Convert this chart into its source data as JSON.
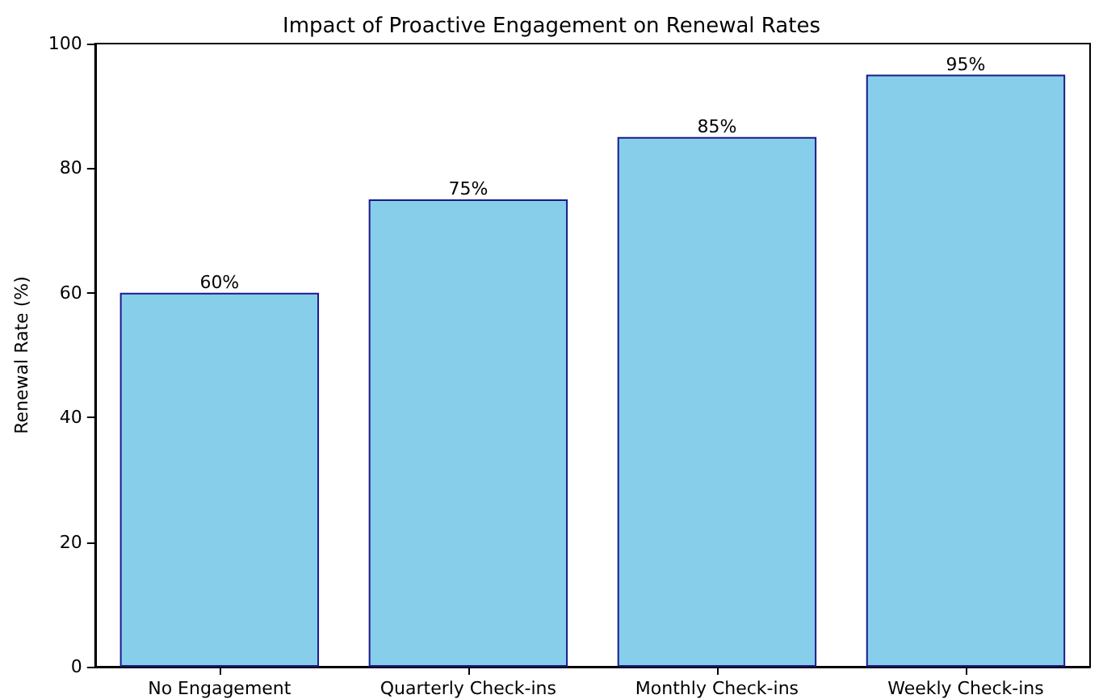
{
  "chart_data": {
    "type": "bar",
    "title": "Impact of Proactive Engagement on Renewal Rates",
    "ylabel": "Renewal Rate (%)",
    "categories": [
      "No Engagement",
      "Quarterly Check-ins",
      "Monthly Check-ins",
      "Weekly Check-ins"
    ],
    "values": [
      60,
      75,
      85,
      95
    ],
    "color": "#87ceeb",
    "value_labels": [
      "60%",
      "75%",
      "85%",
      "95%"
    ],
    "ylim": [
      0,
      100
    ],
    "yticks": [
      0,
      20,
      40,
      60,
      80,
      100
    ],
    "grid": false
  }
}
